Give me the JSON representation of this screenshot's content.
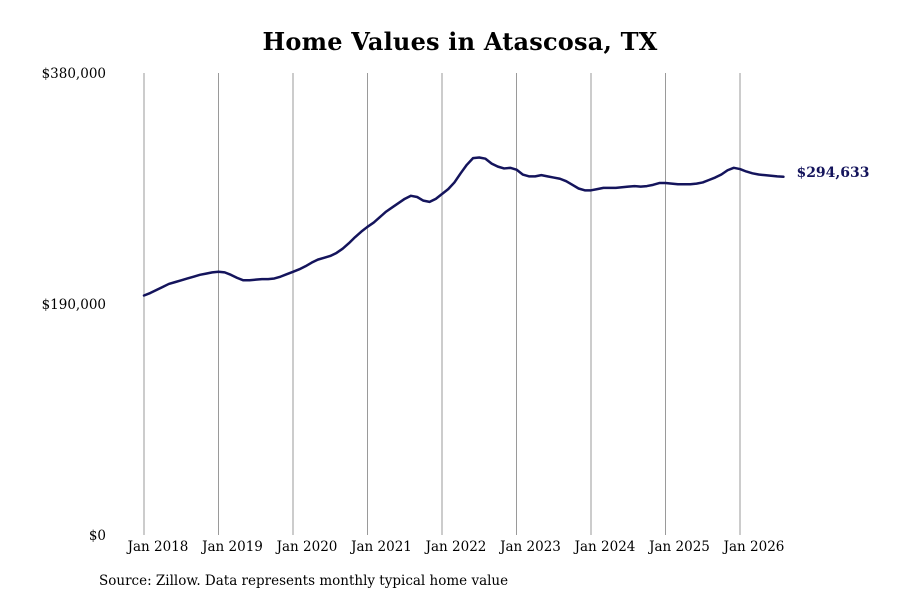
{
  "chart_data": {
    "type": "line",
    "title": "Home Values in Atascosa, TX",
    "xlabel": "",
    "ylabel": "",
    "ylim": [
      0,
      380000
    ],
    "y_ticks": [
      {
        "value": 0,
        "label": "$0"
      },
      {
        "value": 190000,
        "label": "$190,000"
      },
      {
        "value": 380000,
        "label": "$380,000"
      }
    ],
    "x_ticks": [
      {
        "value": "2018-01",
        "label": "Jan 2018"
      },
      {
        "value": "2019-01",
        "label": "Jan 2019"
      },
      {
        "value": "2020-01",
        "label": "Jan 2020"
      },
      {
        "value": "2021-01",
        "label": "Jan 2021"
      },
      {
        "value": "2022-01",
        "label": "Jan 2022"
      },
      {
        "value": "2023-01",
        "label": "Jan 2023"
      },
      {
        "value": "2024-01",
        "label": "Jan 2024"
      },
      {
        "value": "2025-01",
        "label": "Jan 2025"
      },
      {
        "value": "2026-01",
        "label": "Jan 2026"
      }
    ],
    "grid": "vertical",
    "line_color": "#14145c",
    "end_label": "$294,633",
    "series": [
      {
        "x": [
          "2018-01",
          "2018-02",
          "2018-03",
          "2018-04",
          "2018-05",
          "2018-06",
          "2018-07",
          "2018-08",
          "2018-09",
          "2018-10",
          "2018-11",
          "2018-12",
          "2019-01",
          "2019-02",
          "2019-03",
          "2019-04",
          "2019-05",
          "2019-06",
          "2019-07",
          "2019-08",
          "2019-09",
          "2019-10",
          "2019-11",
          "2019-12",
          "2020-01",
          "2020-02",
          "2020-03",
          "2020-04",
          "2020-05",
          "2020-06",
          "2020-07",
          "2020-08",
          "2020-09",
          "2020-10",
          "2020-11",
          "2020-12",
          "2021-01",
          "2021-02",
          "2021-03",
          "2021-04",
          "2021-05",
          "2021-06",
          "2021-07",
          "2021-08",
          "2021-09",
          "2021-10",
          "2021-11",
          "2021-12",
          "2022-01",
          "2022-02",
          "2022-03",
          "2022-04",
          "2022-05",
          "2022-06",
          "2022-07",
          "2022-08",
          "2022-09",
          "2022-10",
          "2022-11",
          "2022-12",
          "2023-01",
          "2023-02",
          "2023-03",
          "2023-04",
          "2023-05",
          "2023-06",
          "2023-07",
          "2023-08",
          "2023-09",
          "2023-10",
          "2023-11",
          "2023-12",
          "2024-01",
          "2024-02",
          "2024-03",
          "2024-04",
          "2024-05",
          "2024-06",
          "2024-07",
          "2024-08",
          "2024-09",
          "2024-10",
          "2024-11",
          "2024-12",
          "2025-01",
          "2025-02",
          "2025-03",
          "2025-04",
          "2025-05",
          "2025-06",
          "2025-07",
          "2025-08",
          "2025-09",
          "2025-10",
          "2025-11",
          "2025-12",
          "2026-01",
          "2026-02",
          "2026-03",
          "2026-04",
          "2026-05",
          "2026-06",
          "2026-07",
          "2026-08"
        ],
        "values": [
          197000,
          199000,
          201500,
          204000,
          206500,
          208000,
          209500,
          211000,
          212500,
          214000,
          215000,
          216000,
          216500,
          216000,
          214000,
          211500,
          209500,
          209500,
          210000,
          210500,
          210500,
          211000,
          212500,
          214500,
          216500,
          218500,
          221000,
          224000,
          226500,
          228000,
          229500,
          232000,
          235500,
          240000,
          245000,
          249500,
          253500,
          257000,
          261500,
          266000,
          269500,
          273000,
          276500,
          279000,
          278000,
          275000,
          274000,
          276500,
          280500,
          284500,
          290000,
          297500,
          304500,
          310000,
          310500,
          309500,
          305500,
          303000,
          301500,
          302000,
          300500,
          296500,
          295000,
          295000,
          296000,
          295000,
          294000,
          293000,
          291000,
          288000,
          285000,
          283500,
          283500,
          284500,
          285500,
          285500,
          285500,
          286000,
          286500,
          287000,
          286500,
          287000,
          288000,
          289500,
          289500,
          289000,
          288500,
          288500,
          288500,
          289000,
          290000,
          292000,
          294000,
          296500,
          300000,
          302000,
          301000,
          299000,
          297500,
          296500,
          296000,
          295500,
          295000,
          294633
        ]
      }
    ]
  },
  "source_text": "Source: Zillow. Data represents monthly typical home value"
}
